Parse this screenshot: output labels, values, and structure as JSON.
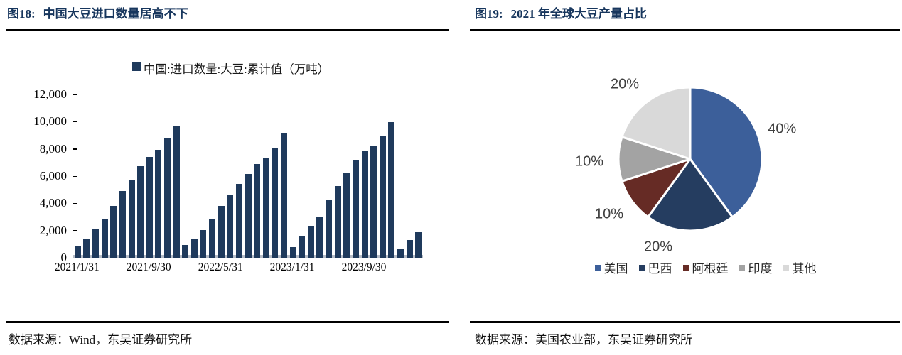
{
  "figures": [
    {
      "tag": "图18:",
      "title": "中国大豆进口数量居高不下",
      "source": "数据来源：Wind，东吴证券研究所"
    },
    {
      "tag": "图19:",
      "title": "2021 年全球大豆产量占比",
      "source": "数据来源：美国农业部，东吴证券研究所"
    }
  ],
  "chart_data": [
    {
      "type": "bar",
      "title": "中国大豆进口数量居高不下",
      "legend": "中国:进口数量:大豆:累计值（万吨）",
      "bar_color": "#1f3a5c",
      "ylim": [
        0,
        12000
      ],
      "y_tick_labels": [
        "12,000",
        "10,000",
        "8,000",
        "6,000",
        "4,000",
        "2,000",
        "0"
      ],
      "x_tick_labels": [
        {
          "index": 0,
          "label": "2021/1/31"
        },
        {
          "index": 8,
          "label": "2021/9/30"
        },
        {
          "index": 16,
          "label": "2022/5/31"
        },
        {
          "index": 24,
          "label": "2023/1/31"
        },
        {
          "index": 32,
          "label": "2023/9/30"
        }
      ],
      "values": [
        850,
        1397,
        2118,
        2863,
        3823,
        4896,
        5763,
        6710,
        7397,
        7908,
        8765,
        9652,
        920,
        1394,
        2028,
        2836,
        3804,
        4628,
        5417,
        6133,
        6904,
        7318,
        8053,
        9108,
        800,
        1617,
        2308,
        3029,
        4231,
        5258,
        6231,
        7166,
        7881,
        8242,
        8963,
        9941,
        700,
        1304,
        1858
      ],
      "grid": false,
      "legend_position": "top"
    },
    {
      "type": "pie",
      "title": "2021 年全球大豆产量占比",
      "slices": [
        {
          "key": "usa",
          "name": "美国",
          "value": 40,
          "label": "40%",
          "color": "#3c5f9a"
        },
        {
          "key": "brazil",
          "name": "巴西",
          "value": 20,
          "label": "20%",
          "color": "#253d60"
        },
        {
          "key": "argentina",
          "name": "阿根廷",
          "value": 10,
          "label": "10%",
          "color": "#662b25"
        },
        {
          "key": "india",
          "name": "印度",
          "value": 10,
          "label": "10%",
          "color": "#a3a3a3"
        },
        {
          "key": "other",
          "name": "其他",
          "value": 20,
          "label": "20%",
          "color": "#d9d9d9"
        }
      ],
      "legend_position": "bottom"
    }
  ]
}
